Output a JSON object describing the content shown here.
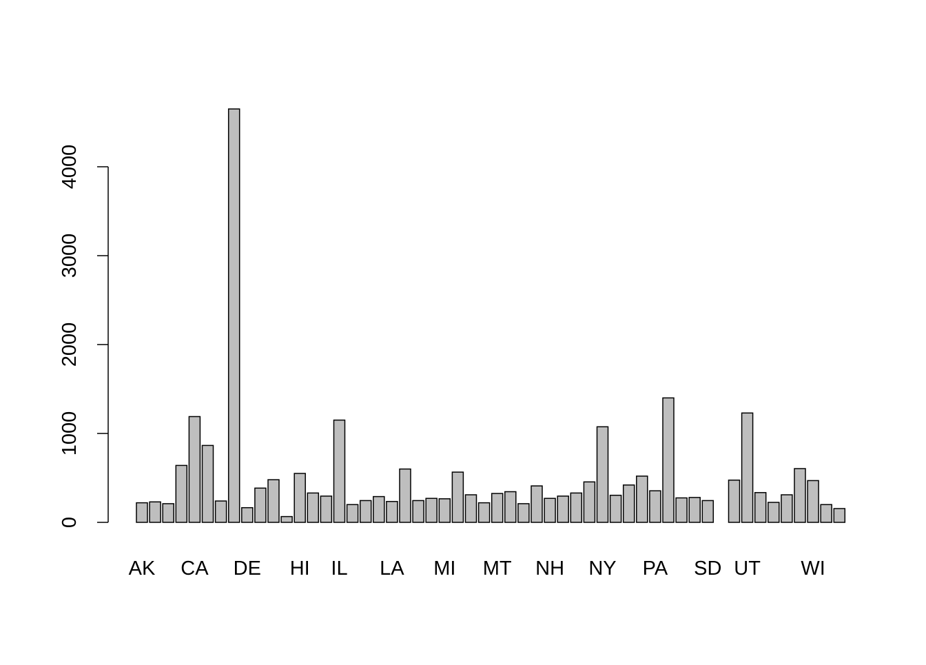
{
  "chart_data": {
    "type": "bar",
    "title": "",
    "xlabel": "",
    "ylabel": "",
    "ylim": [
      0,
      4700
    ],
    "yticks": [
      0,
      1000,
      2000,
      3000,
      4000
    ],
    "grid": false,
    "legend": "none",
    "bar_fill": "#bebebe",
    "bar_stroke": "#000000",
    "bars": [
      {
        "key": "AK",
        "value": 220,
        "label": "AK"
      },
      {
        "key": "AL",
        "value": 230,
        "label": ""
      },
      {
        "key": "AR",
        "value": 210,
        "label": ""
      },
      {
        "key": "AZ",
        "value": 640,
        "label": ""
      },
      {
        "key": "CA",
        "value": 1190,
        "label": "CA"
      },
      {
        "key": "CO",
        "value": 865,
        "label": ""
      },
      {
        "key": "CT",
        "value": 240,
        "label": ""
      },
      {
        "key": "DC",
        "value": 4650,
        "label": ""
      },
      {
        "key": "DE",
        "value": 165,
        "label": "DE"
      },
      {
        "key": "FL",
        "value": 385,
        "label": ""
      },
      {
        "key": "GA",
        "value": 480,
        "label": ""
      },
      {
        "key": "GU",
        "value": 65,
        "label": ""
      },
      {
        "key": "HI",
        "value": 550,
        "label": "HI"
      },
      {
        "key": "IA",
        "value": 330,
        "label": ""
      },
      {
        "key": "ID",
        "value": 295,
        "label": ""
      },
      {
        "key": "IL",
        "value": 1150,
        "label": "IL"
      },
      {
        "key": "IN",
        "value": 200,
        "label": ""
      },
      {
        "key": "KS",
        "value": 245,
        "label": ""
      },
      {
        "key": "KY",
        "value": 290,
        "label": ""
      },
      {
        "key": "LA",
        "value": 235,
        "label": "LA"
      },
      {
        "key": "MA",
        "value": 600,
        "label": ""
      },
      {
        "key": "MD",
        "value": 245,
        "label": ""
      },
      {
        "key": "ME",
        "value": 270,
        "label": ""
      },
      {
        "key": "MI",
        "value": 265,
        "label": "MI"
      },
      {
        "key": "MN",
        "value": 565,
        "label": ""
      },
      {
        "key": "MO",
        "value": 310,
        "label": ""
      },
      {
        "key": "MS",
        "value": 220,
        "label": ""
      },
      {
        "key": "MT",
        "value": 325,
        "label": "MT"
      },
      {
        "key": "NC",
        "value": 345,
        "label": ""
      },
      {
        "key": "ND",
        "value": 210,
        "label": ""
      },
      {
        "key": "NE",
        "value": 410,
        "label": ""
      },
      {
        "key": "NH",
        "value": 270,
        "label": "NH"
      },
      {
        "key": "NJ",
        "value": 295,
        "label": ""
      },
      {
        "key": "NM",
        "value": 330,
        "label": ""
      },
      {
        "key": "NV",
        "value": 455,
        "label": ""
      },
      {
        "key": "NY",
        "value": 1075,
        "label": "NY"
      },
      {
        "key": "OH",
        "value": 305,
        "label": ""
      },
      {
        "key": "OK",
        "value": 420,
        "label": ""
      },
      {
        "key": "OR",
        "value": 520,
        "label": ""
      },
      {
        "key": "PA",
        "value": 355,
        "label": "PA"
      },
      {
        "key": "PR",
        "value": 1400,
        "label": ""
      },
      {
        "key": "RI",
        "value": 275,
        "label": ""
      },
      {
        "key": "SC",
        "value": 280,
        "label": ""
      },
      {
        "key": "SD",
        "value": 245,
        "label": "SD"
      },
      {
        "key": "TN",
        "value": null,
        "label": ""
      },
      {
        "key": "TX",
        "value": 475,
        "label": ""
      },
      {
        "key": "UT",
        "value": 1230,
        "label": "UT"
      },
      {
        "key": "VA",
        "value": 335,
        "label": ""
      },
      {
        "key": "VI",
        "value": 225,
        "label": ""
      },
      {
        "key": "VT",
        "value": 310,
        "label": ""
      },
      {
        "key": "WA",
        "value": 605,
        "label": ""
      },
      {
        "key": "WI",
        "value": 470,
        "label": "WI"
      },
      {
        "key": "WV",
        "value": 200,
        "label": ""
      },
      {
        "key": "WY",
        "value": 155,
        "label": ""
      }
    ]
  }
}
